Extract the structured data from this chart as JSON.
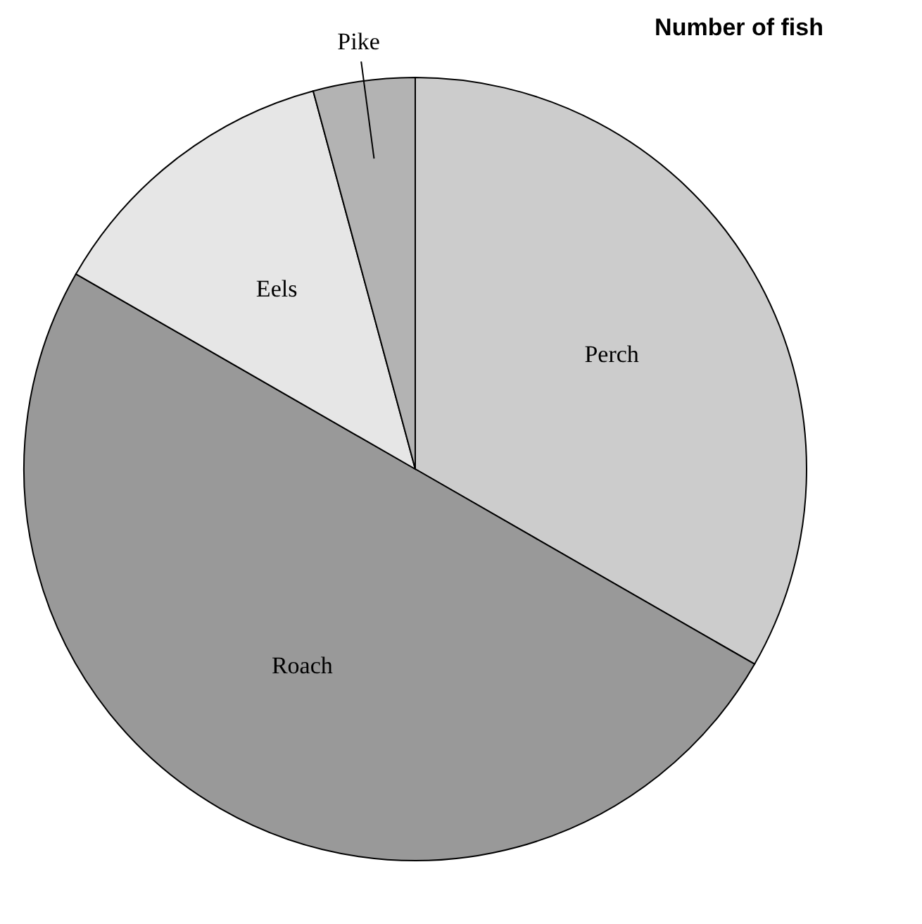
{
  "chart_data": {
    "type": "pie",
    "title": "Number of fish",
    "categories": [
      "Perch",
      "Roach",
      "Eels",
      "Pike"
    ],
    "values": [
      33.3,
      50,
      12.5,
      4.2
    ],
    "colors": [
      "#cccccc",
      "#999999",
      "#e6e6e6",
      "#b3b3b3"
    ],
    "legend": false
  }
}
